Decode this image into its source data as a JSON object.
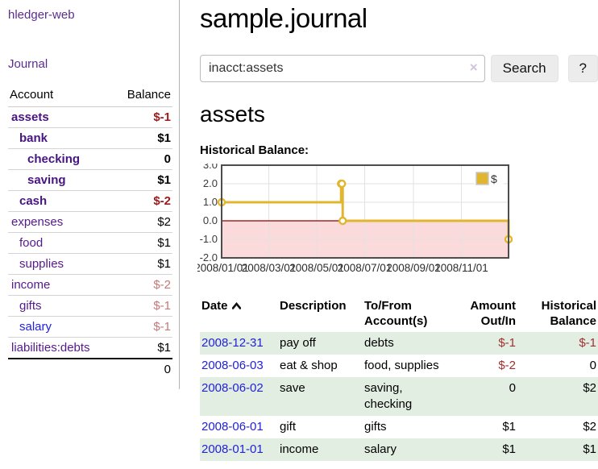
{
  "sidebar": {
    "app_title": "hledger-web",
    "nav": {
      "journal": "Journal"
    },
    "accounts_table": {
      "headers": {
        "account": "Account",
        "balance": "Balance"
      },
      "rows": [
        {
          "name": "assets",
          "indent": 1,
          "emph": true,
          "balance": "$-1",
          "neg": "strong"
        },
        {
          "name": "bank",
          "indent": 2,
          "emph": true,
          "balance": "$1",
          "neg": "none"
        },
        {
          "name": "checking",
          "indent": 3,
          "emph": true,
          "balance": "0",
          "neg": "none"
        },
        {
          "name": "saving",
          "indent": 3,
          "emph": true,
          "balance": "$1",
          "neg": "none"
        },
        {
          "name": "cash",
          "indent": 2,
          "emph": true,
          "balance": "$-2",
          "neg": "strong"
        },
        {
          "name": "expenses",
          "indent": 1,
          "emph": false,
          "balance": "$2",
          "neg": "none"
        },
        {
          "name": "food",
          "indent": 2,
          "emph": false,
          "balance": "$1",
          "neg": "none"
        },
        {
          "name": "supplies",
          "indent": 2,
          "emph": false,
          "balance": "$1",
          "neg": "none"
        },
        {
          "name": "income",
          "indent": 1,
          "emph": false,
          "balance": "$-2",
          "neg": "soft"
        },
        {
          "name": "gifts",
          "indent": 2,
          "emph": false,
          "balance": "$-1",
          "neg": "soft"
        },
        {
          "name": "salary",
          "indent": 2,
          "emph": false,
          "balance": "$-1",
          "neg": "soft",
          "unvisited": true
        },
        {
          "name": "liabilities:debts",
          "indent": 1,
          "emph": false,
          "balance": "$1",
          "neg": "none",
          "last": true
        }
      ],
      "total": "0"
    }
  },
  "main": {
    "title": "sample.journal",
    "search": {
      "value": "inacct:assets",
      "clear_icon": "×",
      "button": "Search",
      "help_button": "?"
    },
    "account_heading": "assets",
    "chart_label": "Historical Balance:"
  },
  "chart_data": {
    "type": "line",
    "title": "Historical Balance",
    "step": true,
    "series": [
      {
        "name": "$",
        "color": "#e2b52e",
        "points": [
          [
            "2008-01-01",
            1
          ],
          [
            "2008-06-01",
            2
          ],
          [
            "2008-06-02",
            2
          ],
          [
            "2008-06-03",
            0
          ],
          [
            "2008-12-31",
            -1
          ]
        ]
      }
    ],
    "x_range": [
      "2008-01-01",
      "2008-12-31"
    ],
    "x_ticks": [
      "2008/01/01",
      "2008/03/01",
      "2008/05/01",
      "2008/07/01",
      "2008/09/01",
      "2008/11/01"
    ],
    "y_ticks": [
      3,
      2,
      1,
      0,
      -1,
      -2
    ],
    "ylim": [
      -2,
      3
    ],
    "grid": true,
    "negative_region_fill": "#fadada",
    "zero_line_color": "#8b0000",
    "legend": {
      "label": "$",
      "position": "top-right"
    }
  },
  "register": {
    "headers": {
      "date": "Date",
      "description": "Description",
      "accounts": "To/From Account(s)",
      "amount": "Amount Out/In",
      "balance": "Historical Balance"
    },
    "rows": [
      {
        "date": "2008-12-31",
        "description": "pay off",
        "accounts": "debts",
        "amount": "$-1",
        "amount_neg": true,
        "balance": "$-1",
        "balance_neg": true
      },
      {
        "date": "2008-06-03",
        "description": "eat & shop",
        "accounts": "food, supplies",
        "amount": "$-2",
        "amount_neg": true,
        "balance": "0",
        "balance_neg": false
      },
      {
        "date": "2008-06-02",
        "description": "save",
        "accounts": "saving, checking",
        "amount": "0",
        "amount_neg": false,
        "balance": "$2",
        "balance_neg": false
      },
      {
        "date": "2008-06-01",
        "description": "gift",
        "accounts": "gifts",
        "amount": "$1",
        "amount_neg": false,
        "balance": "$2",
        "balance_neg": false
      },
      {
        "date": "2008-01-01",
        "description": "income",
        "accounts": "salary",
        "amount": "$1",
        "amount_neg": false,
        "balance": "$1",
        "balance_neg": false
      }
    ]
  },
  "colors": {
    "link_purple": "#551a8b",
    "link_blue": "#2222d6",
    "negative_strong": "#9e1a1a",
    "negative_soft": "#c47878",
    "table_negative": "#a03030",
    "row_green": "#e3eee3",
    "series_gold": "#e2b52e",
    "negative_band_pink": "#fadada",
    "zero_line_dark_red": "#8b0000"
  }
}
